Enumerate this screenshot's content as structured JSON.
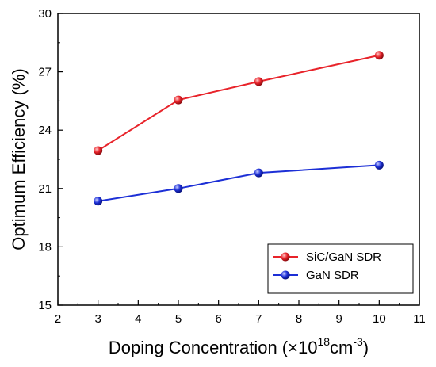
{
  "chart_data": {
    "type": "line",
    "xlabel": "Doping Concentration (×10",
    "xlabel_sup": "18",
    "xlabel_mid": "cm",
    "xlabel_sup2": "-3",
    "xlabel_end": ")",
    "ylabel": "Optimum Efficiency (%)",
    "xlim": [
      2,
      11
    ],
    "ylim": [
      15,
      30
    ],
    "xticks": [
      "2",
      "3",
      "4",
      "5",
      "6",
      "7",
      "8",
      "9",
      "10",
      "11"
    ],
    "yticks": [
      "15",
      "18",
      "21",
      "24",
      "27",
      "30"
    ],
    "xtick_values": [
      2,
      3,
      4,
      5,
      6,
      7,
      8,
      9,
      10,
      11
    ],
    "ytick_values": [
      15,
      18,
      21,
      24,
      27,
      30
    ],
    "grid": false,
    "legend_position": "bottom-right",
    "series": [
      {
        "name": "SiC/GaN SDR",
        "color": "#e8232a",
        "x": [
          3,
          5,
          7,
          10
        ],
        "y": [
          22.95,
          25.55,
          26.5,
          27.85
        ]
      },
      {
        "name": "GaN SDR",
        "color": "#1c2fd6",
        "x": [
          3,
          5,
          7,
          10
        ],
        "y": [
          20.35,
          21.0,
          21.8,
          22.2
        ]
      }
    ]
  }
}
